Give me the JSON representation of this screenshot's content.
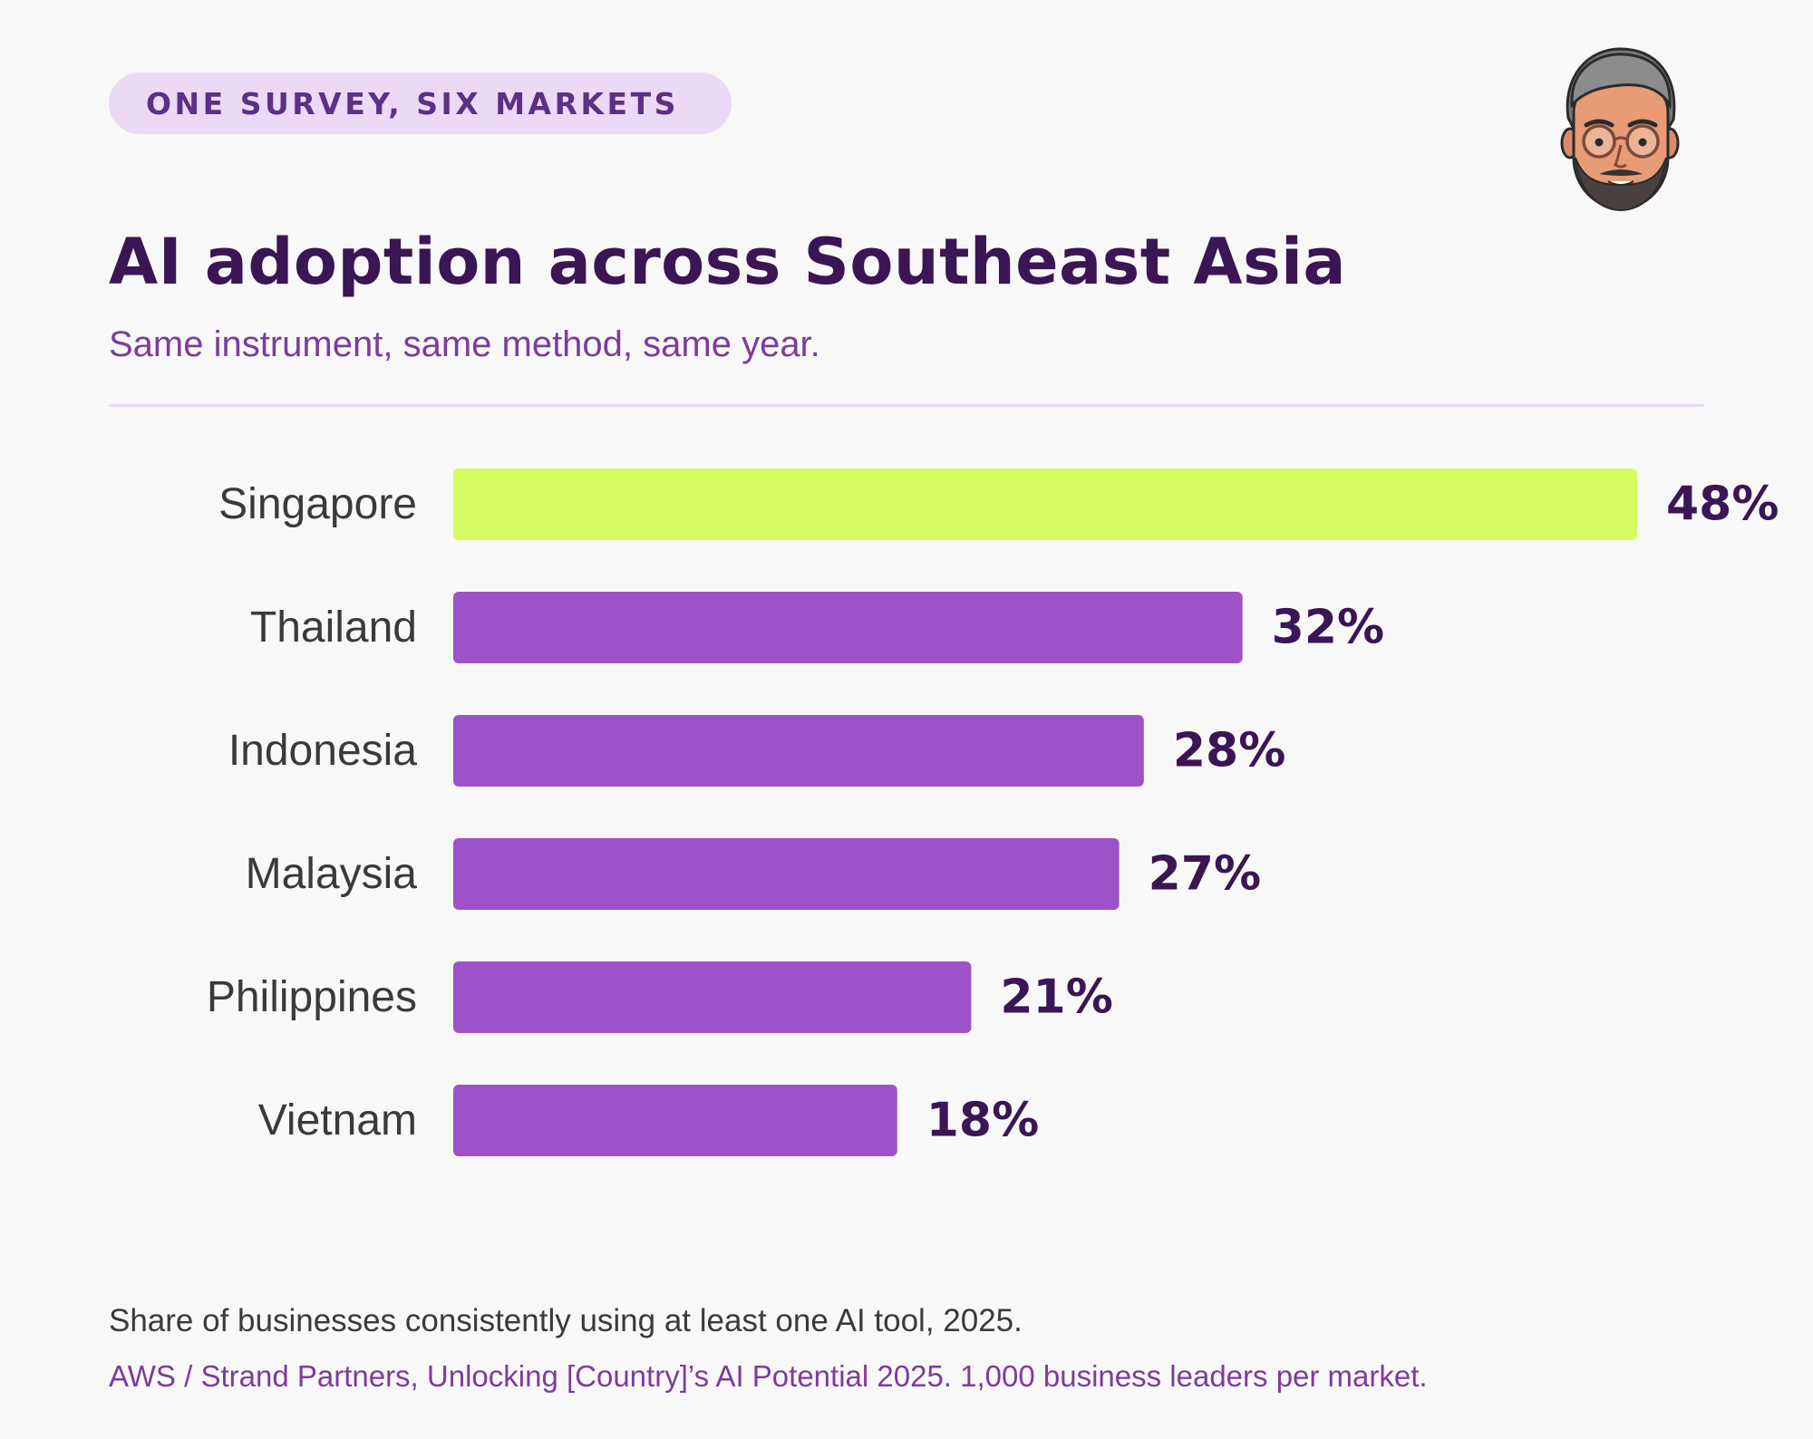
{
  "badge": "ONE SURVEY, SIX MARKETS",
  "avatar_icon": "avatar-cartoon-man-with-glasses",
  "title": "AI adoption across Southeast Asia",
  "subtitle": "Same instrument, same method, same year.",
  "chart_data": {
    "type": "bar",
    "orientation": "horizontal",
    "categories": [
      "Singapore",
      "Thailand",
      "Indonesia",
      "Malaysia",
      "Philippines",
      "Vietnam"
    ],
    "values": [
      48,
      32,
      28,
      27,
      21,
      18
    ],
    "value_labels": [
      "48%",
      "32%",
      "28%",
      "27%",
      "21%",
      "18%"
    ],
    "highlight_index": 0,
    "xlim": [
      0,
      48
    ],
    "grid": false,
    "colors": {
      "highlight": "#d6fb61",
      "default": "#9e52c8"
    }
  },
  "footer": {
    "note": "Share of businesses consistently using at least one AI tool, 2025.",
    "source": "AWS / Strand Partners, Unlocking [Country]’s AI Potential 2025. 1,000 business leaders per market."
  }
}
